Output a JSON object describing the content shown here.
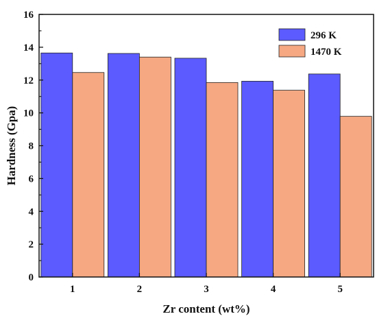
{
  "chart_data": {
    "type": "bar",
    "title": "",
    "xlabel": "Zr content (wt%)",
    "ylabel": "Hardness (Gpa)",
    "categories": [
      "1",
      "2",
      "3",
      "4",
      "5"
    ],
    "ylim": [
      0,
      16
    ],
    "yticks": [
      "0",
      "2",
      "4",
      "6",
      "8",
      "10",
      "12",
      "14",
      "16"
    ],
    "grid": false,
    "legend_position": "top-right",
    "series": [
      {
        "name": "296 K",
        "color": "#5b5bff",
        "values": [
          13.65,
          13.62,
          13.33,
          11.93,
          12.37
        ]
      },
      {
        "name": "1470 K",
        "color": "#f5a882",
        "values": [
          12.46,
          13.4,
          11.85,
          11.38,
          9.79
        ]
      }
    ]
  }
}
